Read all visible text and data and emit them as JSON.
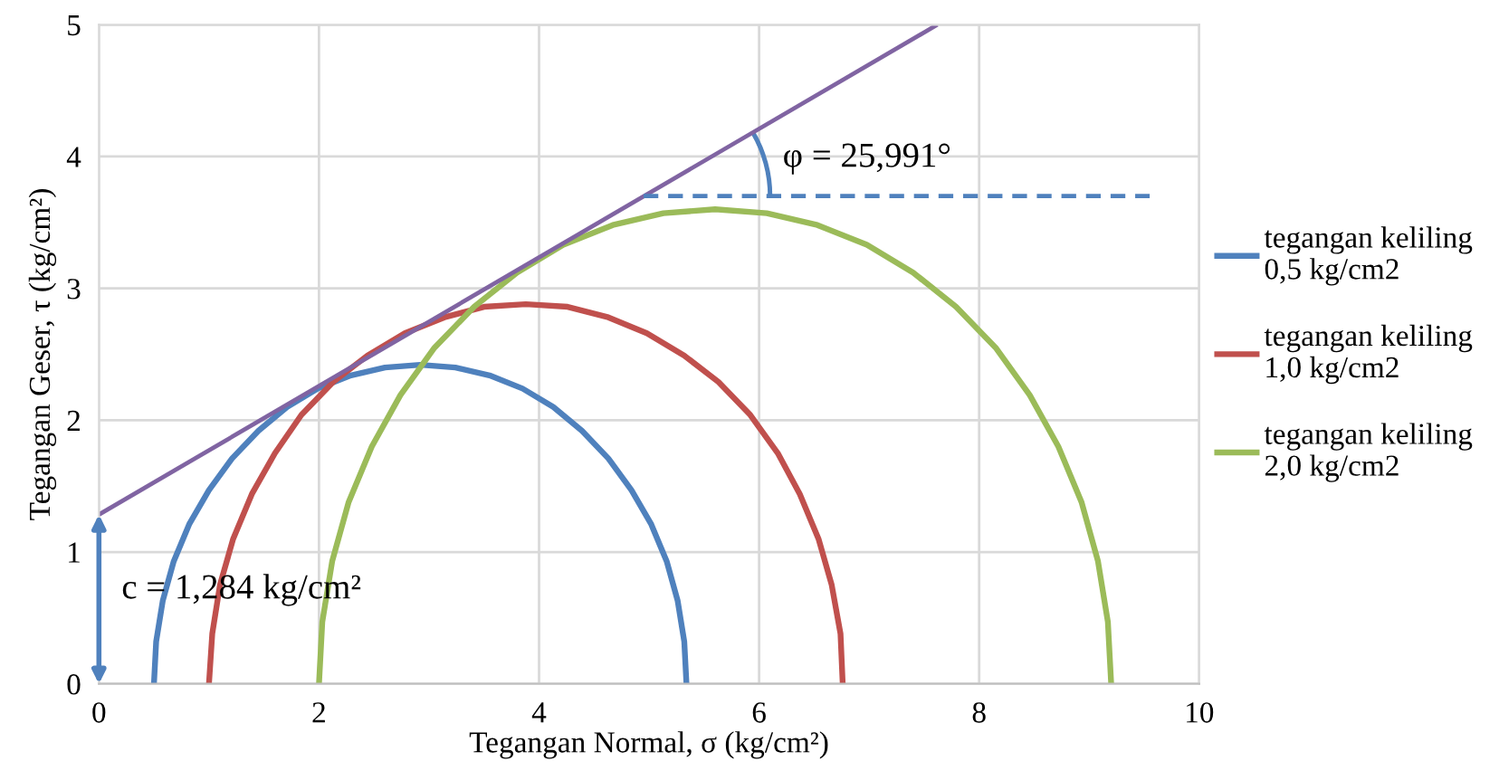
{
  "chart_data": {
    "type": "line",
    "xlabel": "Tegangan Normal, σ (kg/cm²)",
    "ylabel": "Tegangan Geser, τ (kg/cm²)",
    "xlim": [
      0,
      10
    ],
    "xticks": [
      0,
      2,
      4,
      6,
      8,
      10
    ],
    "ylim": [
      0,
      5
    ],
    "yticks": [
      0,
      1,
      2,
      3,
      4,
      5
    ],
    "grid": true,
    "legend": "right",
    "marker": "none",
    "series": [
      {
        "name": "tegangan keliling\n0,5 kg/cm2",
        "color": "#4f81bd",
        "x": [
          0.5,
          0.52,
          0.58,
          0.68,
          0.82,
          1.0,
          1.21,
          1.45,
          1.71,
          1.99,
          2.29,
          2.6,
          2.92,
          3.24,
          3.55,
          3.85,
          4.13,
          4.39,
          4.63,
          4.84,
          5.02,
          5.16,
          5.26,
          5.32,
          5.34
        ],
        "values": [
          0,
          0.32,
          0.63,
          0.93,
          1.21,
          1.47,
          1.71,
          1.92,
          2.1,
          2.24,
          2.34,
          2.4,
          2.42,
          2.4,
          2.34,
          2.24,
          2.1,
          1.92,
          1.71,
          1.47,
          1.21,
          0.93,
          0.63,
          0.32,
          0
        ]
      },
      {
        "name": "tegangan keliling\n1,0 kg/cm2",
        "color": "#c0504d",
        "x": [
          1.0,
          1.03,
          1.1,
          1.22,
          1.39,
          1.6,
          1.84,
          2.13,
          2.44,
          2.78,
          3.14,
          3.5,
          3.88,
          4.26,
          4.63,
          4.98,
          5.32,
          5.63,
          5.92,
          6.17,
          6.37,
          6.54,
          6.66,
          6.74,
          6.76
        ],
        "values": [
          0,
          0.38,
          0.75,
          1.1,
          1.44,
          1.75,
          2.04,
          2.29,
          2.49,
          2.66,
          2.78,
          2.86,
          2.88,
          2.86,
          2.78,
          2.66,
          2.49,
          2.29,
          2.04,
          1.75,
          1.44,
          1.1,
          0.75,
          0.38,
          0
        ]
      },
      {
        "name": "tegangan keliling\n2,0 kg/cm2",
        "color": "#9bbb59",
        "x": [
          2.0,
          2.03,
          2.12,
          2.27,
          2.48,
          2.74,
          3.05,
          3.41,
          3.8,
          4.22,
          4.67,
          5.13,
          5.6,
          6.07,
          6.53,
          6.98,
          7.4,
          7.79,
          8.15,
          8.46,
          8.72,
          8.93,
          9.08,
          9.17,
          9.2
        ],
        "values": [
          0,
          0.47,
          0.93,
          1.38,
          1.8,
          2.19,
          2.55,
          2.86,
          3.12,
          3.33,
          3.48,
          3.57,
          3.6,
          3.57,
          3.48,
          3.33,
          3.12,
          2.86,
          2.55,
          2.19,
          1.8,
          1.38,
          0.93,
          0.47,
          0
        ]
      },
      {
        "color": "#8064a2",
        "x": [
          0,
          7.62
        ],
        "values": [
          1.284,
          5
        ]
      },
      {
        "color": "#4f81bd",
        "x": [
          4.95,
          9.55
        ],
        "values": [
          3.7,
          3.7
        ],
        "line_style": "dashed"
      }
    ],
    "annotations": [
      {
        "text": "φ = 25,991°",
        "x": 6.1,
        "y": 3.7
      },
      {
        "text": "c = 1,284 kg/cm²",
        "x": 0,
        "y": 1.284
      }
    ]
  }
}
